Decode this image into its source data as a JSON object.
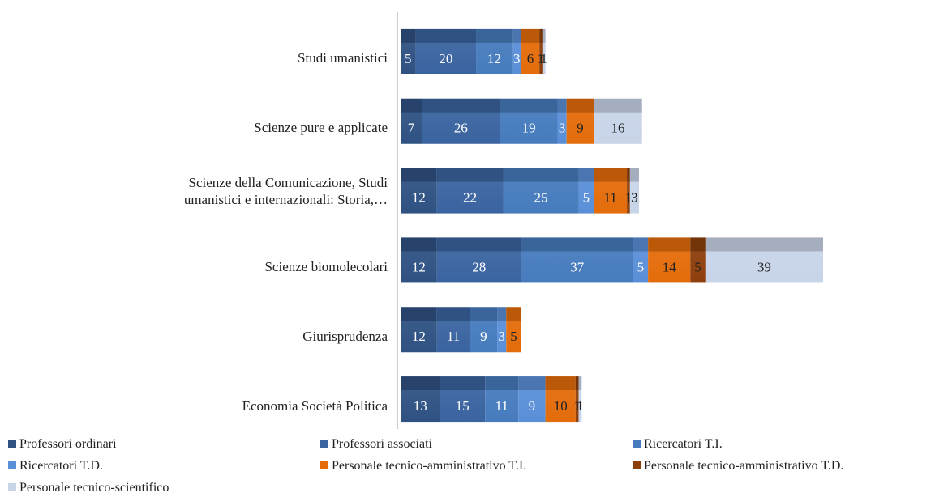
{
  "chart_data": {
    "type": "stacked-barh",
    "categories": [
      "Studi umanistici",
      "Scienze pure e applicate",
      "Scienze della Comunicazione, Studi umanistici e internazionali: Storia,…",
      "Scienze biomolecolari",
      "Giurisprudenza",
      "Economia Società Politica"
    ],
    "series": [
      {
        "name": "Professori ordinari",
        "color": "#2f5283",
        "values": [
          5,
          7,
          12,
          12,
          12,
          13
        ]
      },
      {
        "name": "Professori associati",
        "color": "#3a64a0",
        "values": [
          20,
          26,
          22,
          28,
          11,
          15
        ]
      },
      {
        "name": "Ricercatori T.I.",
        "color": "#467bbd",
        "values": [
          12,
          19,
          25,
          37,
          9,
          11
        ]
      },
      {
        "name": "Ricercatori T.D.",
        "color": "#5a8fd8",
        "values": [
          3,
          3,
          5,
          5,
          3,
          9
        ]
      },
      {
        "name": "Personale tecnico-amministrativo T.I.",
        "color": "#e46c0a",
        "values": [
          6,
          9,
          11,
          14,
          5,
          10
        ]
      },
      {
        "name": "Personale tecnico-amministrativo T.D.",
        "color": "#8e3f0c",
        "values": [
          1,
          null,
          1,
          5,
          null,
          1
        ]
      },
      {
        "name": "Personale tecnico-scientifico",
        "color": "#c8d4e8",
        "values": [
          1,
          16,
          3,
          39,
          null,
          1
        ]
      }
    ],
    "legend": "bottom"
  }
}
